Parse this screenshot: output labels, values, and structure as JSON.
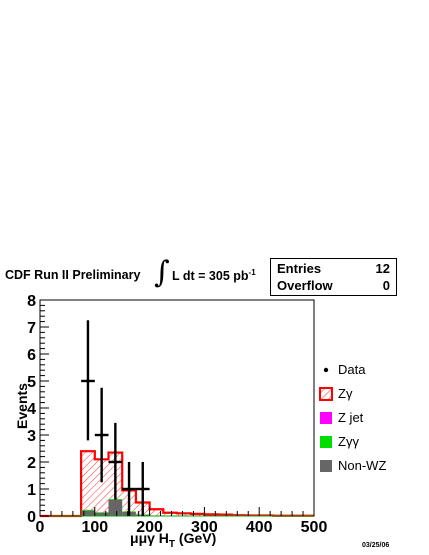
{
  "header": {
    "experiment": "CDF Run II Preliminary",
    "integral_symbol": "∫",
    "lumi_text": "L dt = 305 pb",
    "lumi_exponent": "-1"
  },
  "stats_box": {
    "entries_label": "Entries",
    "entries_value": "12",
    "overflow_label": "Overflow",
    "overflow_value": "0"
  },
  "date_stamp": "03/25/06",
  "chart_data": {
    "type": "bar",
    "xlabel": "μμγ H_T (GeV)",
    "xlabel_main": "μμγ H",
    "xlabel_sub": "T",
    "xlabel_unit": " (GeV)",
    "ylabel": "Events",
    "xlim": [
      0,
      500
    ],
    "ylim": [
      0,
      8
    ],
    "x_ticks": [
      0,
      100,
      200,
      300,
      400,
      500
    ],
    "y_ticks": [
      0,
      1,
      2,
      3,
      4,
      5,
      6,
      7,
      8
    ],
    "bin_edges": [
      0,
      25,
      50,
      75,
      100,
      125,
      150,
      175,
      200,
      225,
      250,
      275,
      300,
      325,
      350,
      375,
      400,
      425,
      450,
      475,
      500
    ],
    "series": [
      {
        "name": "Zγ",
        "color": "#ff0000",
        "style": "hatched",
        "values": [
          0,
          0,
          0,
          2.4,
          2.1,
          2.35,
          0.95,
          0.5,
          0.25,
          0.12,
          0.1,
          0.08,
          0.06,
          0.05,
          0.03,
          0.02,
          0.02,
          0.01,
          0.01,
          0.01
        ]
      },
      {
        "name": "Z jet",
        "color": "#ff00ff",
        "values": [
          0,
          0,
          0,
          0,
          0,
          0,
          0,
          0,
          0,
          0,
          0,
          0,
          0,
          0,
          0,
          0,
          0,
          0,
          0,
          0
        ]
      },
      {
        "name": "Zγγ",
        "color": "#00dd00",
        "values": [
          0,
          0,
          0,
          0.03,
          0.02,
          0.03,
          0.02,
          0.01,
          0.01,
          0,
          0,
          0,
          0,
          0,
          0,
          0,
          0,
          0,
          0,
          0
        ]
      },
      {
        "name": "Non-WZ",
        "color": "#666666",
        "values": [
          0,
          0,
          0,
          0.2,
          0.12,
          0.6,
          0.15,
          0.05,
          0,
          0,
          0,
          0,
          0,
          0,
          0,
          0,
          0,
          0,
          0,
          0
        ]
      }
    ],
    "data_points": {
      "name": "Data",
      "points": [
        {
          "x": 87.5,
          "y": 5,
          "err_lo": 2.2,
          "err_hi": 2.25
        },
        {
          "x": 112.5,
          "y": 3,
          "err_lo": 1.75,
          "err_hi": 1.75
        },
        {
          "x": 137.5,
          "y": 2,
          "err_lo": 1.4,
          "err_hi": 1.45
        },
        {
          "x": 162.5,
          "y": 1,
          "err_lo": 1,
          "err_hi": 1
        },
        {
          "x": 187.5,
          "y": 1,
          "err_lo": 1,
          "err_hi": 1
        }
      ]
    },
    "legend": {
      "position": "right",
      "entries": [
        {
          "label": "Data",
          "kind": "marker"
        },
        {
          "label": "Zγ",
          "kind": "hatched",
          "color": "#ff0000"
        },
        {
          "label": "Z jet",
          "kind": "fill",
          "color": "#ff00ff"
        },
        {
          "label": "Zγγ",
          "kind": "fill",
          "color": "#00dd00"
        },
        {
          "label": "Non-WZ",
          "kind": "fill",
          "color": "#666666"
        }
      ]
    }
  }
}
